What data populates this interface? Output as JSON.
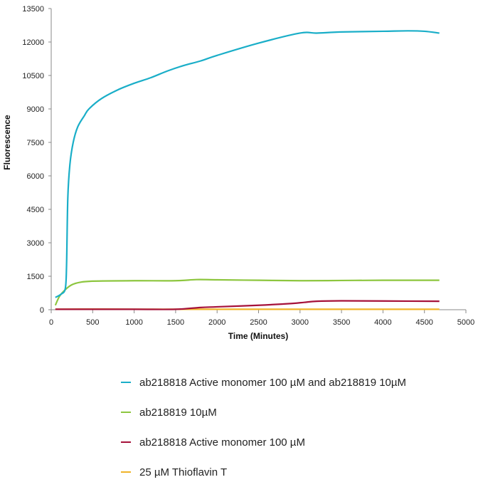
{
  "chart_data": {
    "type": "line",
    "title": "",
    "xlabel": "Time (Minutes)",
    "ylabel": "Fluorescence",
    "xlim": [
      0,
      5000
    ],
    "ylim": [
      0,
      13500
    ],
    "xticks": [
      0,
      500,
      1000,
      1500,
      2000,
      2500,
      3000,
      3500,
      4000,
      4500,
      5000
    ],
    "yticks": [
      0,
      1500,
      3000,
      4500,
      6000,
      7500,
      9000,
      10500,
      12000,
      13500
    ],
    "grid": false,
    "legend_position": "bottom",
    "series": [
      {
        "name": "ab218818 Active monomer 100 µM and ab218819 10µM",
        "color": "#1aaec8",
        "x": [
          50,
          120,
          170,
          185,
          200,
          225,
          265,
          320,
          400,
          455,
          600,
          800,
          1000,
          1200,
          1400,
          1600,
          1800,
          2000,
          2500,
          3000,
          3200,
          3500,
          4000,
          4300,
          4500,
          4680
        ],
        "y": [
          550,
          700,
          950,
          2000,
          5000,
          6500,
          7500,
          8200,
          8700,
          9000,
          9450,
          9850,
          10150,
          10400,
          10700,
          10950,
          11150,
          11400,
          11950,
          12400,
          12400,
          12450,
          12480,
          12500,
          12480,
          12400
        ]
      },
      {
        "name": "ab218819 10µM",
        "color": "#8dc63f",
        "x": [
          50,
          100,
          170,
          250,
          350,
          500,
          1000,
          1500,
          1750,
          2000,
          2500,
          3000,
          3500,
          4000,
          4680
        ],
        "y": [
          200,
          600,
          900,
          1120,
          1230,
          1280,
          1300,
          1300,
          1350,
          1340,
          1320,
          1300,
          1310,
          1320,
          1320
        ]
      },
      {
        "name": "ab218818 Active monomer 100 µM",
        "color": "#a6123a",
        "x": [
          50,
          1000,
          1500,
          1800,
          2000,
          2500,
          2900,
          3050,
          3200,
          3500,
          4000,
          4680
        ],
        "y": [
          20,
          20,
          20,
          100,
          130,
          200,
          280,
          330,
          380,
          400,
          390,
          380
        ]
      },
      {
        "name": "25 µM Thioflavin T",
        "color": "#f0b429",
        "x": [
          50,
          500,
          1000,
          2000,
          3000,
          4000,
          4680
        ],
        "y": [
          20,
          30,
          20,
          20,
          20,
          20,
          20
        ]
      }
    ]
  }
}
